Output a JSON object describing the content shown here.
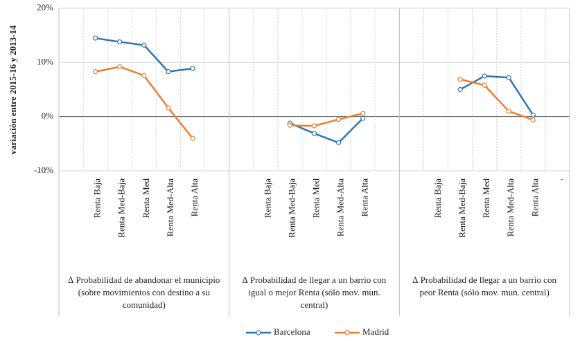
{
  "chart_data": {
    "type": "line",
    "y_label": "variación entre 2015-16 y 2013-14",
    "categories": [
      null,
      "Renta Baja",
      "Renta Med-Baja",
      "Renta Med",
      "Renta Med-Alta",
      "Renta Alta",
      null,
      null,
      "Renta Baja",
      "Renta Med-Baja",
      "Renta Med",
      "Renta Med-Alta",
      "Renta Alta",
      null,
      null,
      "Renta Baja",
      "Renta Med-Baja",
      "Renta Med",
      "Renta Med-Alta",
      "Renta Alta",
      "."
    ],
    "groups": [
      "∆ Probabilidad de abandonar el municipio (sobre movimientos con destino a su comunidad)",
      "∆ Probabilidad de llegar a un barrio con igual o mejor Renta (sólo mov. mun. central)",
      "∆ Probabilidad de llegar a un barrio con peor Renta (sólo mov. mun. central)"
    ],
    "series": [
      {
        "name": "Barcelona",
        "color": "#2e75b6",
        "values": [
          null,
          14.5,
          13.8,
          13.2,
          8.3,
          8.9,
          null,
          null,
          null,
          -1.2,
          -3.1,
          -4.8,
          -0.3,
          null,
          null,
          null,
          5.0,
          7.5,
          7.2,
          0.3,
          null
        ]
      },
      {
        "name": "Madrid",
        "color": "#ed7d31",
        "values": [
          null,
          8.3,
          9.2,
          7.6,
          1.6,
          -4.0,
          null,
          null,
          null,
          -1.6,
          -1.7,
          -0.5,
          0.6,
          null,
          null,
          null,
          6.9,
          5.8,
          1.0,
          -0.6,
          null
        ]
      }
    ],
    "ylim": [
      -10,
      20
    ],
    "yticks": [
      {
        "value": -10,
        "label": "-10%"
      },
      {
        "value": 0,
        "label": "0%"
      },
      {
        "value": 10,
        "label": "10%"
      },
      {
        "value": 20,
        "label": "20%"
      }
    ],
    "grid": true,
    "legend": "bottom"
  }
}
